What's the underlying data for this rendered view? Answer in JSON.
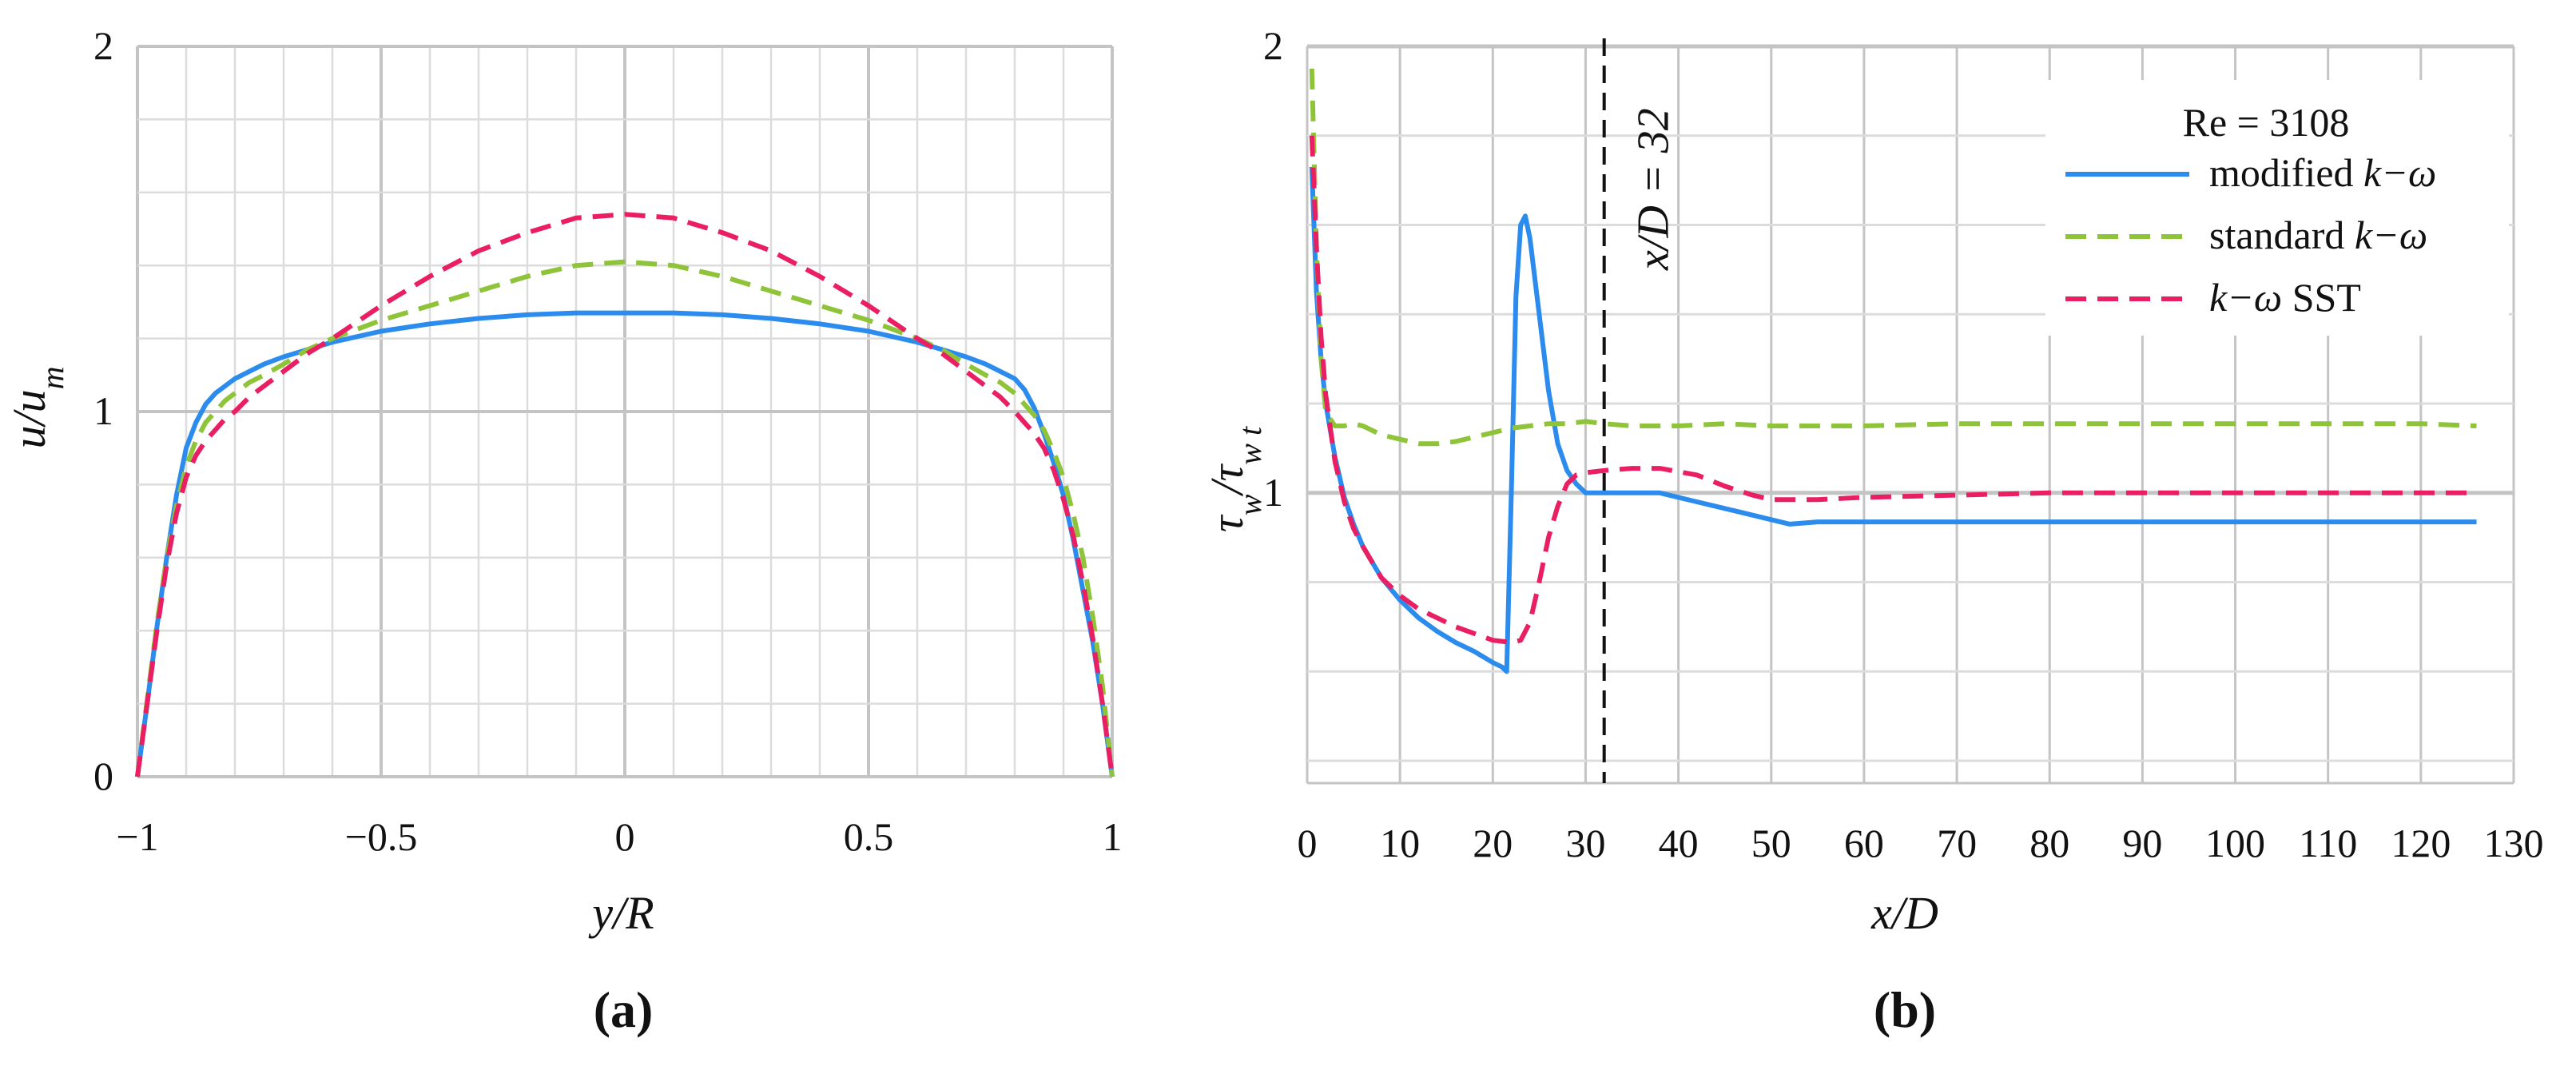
{
  "figure": {
    "panels": [
      {
        "label": "(a)"
      },
      {
        "label": "(b)"
      }
    ]
  },
  "colors": {
    "modified": "#2b8cee",
    "standard": "#8fc43a",
    "sst": "#e91e63",
    "grid_major": "#c4c4c4",
    "grid_minor": "#dcdcdc"
  },
  "chart_data": [
    {
      "type": "line",
      "panel": "(a)",
      "xlabel": "y/R",
      "ylabel": "u/u_m",
      "xlim": [
        -1,
        1
      ],
      "ylim": [
        0,
        2
      ],
      "xticks": [
        -1,
        -0.5,
        0,
        0.5,
        1
      ],
      "xtick_labels": [
        "−1",
        "−0.5",
        "0",
        "0.5",
        "1"
      ],
      "yticks": [
        0,
        1,
        2
      ],
      "ytick_labels": [
        "0",
        "1",
        "2"
      ],
      "grid": true,
      "series": [
        {
          "key": "modified",
          "style": "solid",
          "x": [
            -1,
            -0.98,
            -0.96,
            -0.94,
            -0.92,
            -0.9,
            -0.88,
            -0.86,
            -0.84,
            -0.82,
            -0.8,
            -0.77,
            -0.74,
            -0.7,
            -0.65,
            -0.6,
            -0.5,
            -0.4,
            -0.3,
            -0.2,
            -0.1,
            0,
            0.1,
            0.2,
            0.3,
            0.4,
            0.5,
            0.6,
            0.65,
            0.7,
            0.74,
            0.77,
            0.8,
            0.82,
            0.84,
            0.86,
            0.88,
            0.9,
            0.92,
            0.94,
            0.96,
            0.98,
            1
          ],
          "y": [
            0,
            0.2,
            0.41,
            0.6,
            0.77,
            0.9,
            0.97,
            1.02,
            1.05,
            1.07,
            1.09,
            1.11,
            1.13,
            1.15,
            1.17,
            1.19,
            1.22,
            1.24,
            1.255,
            1.265,
            1.27,
            1.27,
            1.27,
            1.265,
            1.255,
            1.24,
            1.22,
            1.19,
            1.17,
            1.15,
            1.13,
            1.11,
            1.09,
            1.06,
            1.01,
            0.94,
            0.86,
            0.77,
            0.65,
            0.51,
            0.37,
            0.2,
            0
          ]
        },
        {
          "key": "standard",
          "style": "dashed",
          "x": [
            -1,
            -0.98,
            -0.96,
            -0.94,
            -0.92,
            -0.9,
            -0.88,
            -0.86,
            -0.84,
            -0.82,
            -0.8,
            -0.77,
            -0.74,
            -0.7,
            -0.65,
            -0.6,
            -0.5,
            -0.4,
            -0.3,
            -0.2,
            -0.1,
            0,
            0.1,
            0.2,
            0.3,
            0.4,
            0.5,
            0.6,
            0.65,
            0.7,
            0.74,
            0.77,
            0.8,
            0.82,
            0.84,
            0.86,
            0.88,
            0.9,
            0.92,
            0.94,
            0.96,
            0.98,
            1
          ],
          "y": [
            0,
            0.21,
            0.42,
            0.6,
            0.74,
            0.85,
            0.92,
            0.97,
            1.0,
            1.03,
            1.05,
            1.08,
            1.1,
            1.13,
            1.17,
            1.2,
            1.25,
            1.29,
            1.33,
            1.37,
            1.4,
            1.41,
            1.4,
            1.37,
            1.33,
            1.29,
            1.25,
            1.2,
            1.17,
            1.13,
            1.1,
            1.08,
            1.05,
            1.02,
            0.99,
            0.95,
            0.89,
            0.82,
            0.72,
            0.6,
            0.44,
            0.25,
            0
          ]
        },
        {
          "key": "sst",
          "style": "dashed",
          "x": [
            -1,
            -0.98,
            -0.96,
            -0.94,
            -0.92,
            -0.9,
            -0.88,
            -0.86,
            -0.84,
            -0.82,
            -0.8,
            -0.77,
            -0.74,
            -0.7,
            -0.65,
            -0.6,
            -0.5,
            -0.4,
            -0.3,
            -0.2,
            -0.1,
            0,
            0.1,
            0.2,
            0.3,
            0.4,
            0.5,
            0.6,
            0.65,
            0.7,
            0.74,
            0.77,
            0.8,
            0.82,
            0.84,
            0.86,
            0.88,
            0.9,
            0.92,
            0.94,
            0.96,
            0.98,
            1
          ],
          "y": [
            0,
            0.2,
            0.4,
            0.58,
            0.72,
            0.82,
            0.88,
            0.92,
            0.95,
            0.98,
            1.0,
            1.04,
            1.07,
            1.11,
            1.16,
            1.2,
            1.29,
            1.37,
            1.44,
            1.49,
            1.53,
            1.54,
            1.53,
            1.49,
            1.44,
            1.37,
            1.29,
            1.2,
            1.16,
            1.11,
            1.07,
            1.04,
            1.0,
            0.97,
            0.94,
            0.9,
            0.84,
            0.76,
            0.66,
            0.53,
            0.38,
            0.2,
            0
          ]
        }
      ]
    },
    {
      "type": "line",
      "panel": "(b)",
      "xlabel": "x/D",
      "ylabel": "τ_w/τ_w t",
      "xlim": [
        0,
        130
      ],
      "ylim": [
        0.35,
        2
      ],
      "xticks": [
        0,
        10,
        20,
        30,
        40,
        50,
        60,
        70,
        80,
        90,
        100,
        110,
        120,
        130
      ],
      "yticks": [
        1,
        2
      ],
      "ytick_labels": [
        "1",
        "2"
      ],
      "grid": true,
      "legend": {
        "title": "Re = 3108",
        "placement": "top-right",
        "entries": [
          {
            "key": "modified",
            "text": "modified ",
            "italic": "k−ω"
          },
          {
            "key": "standard",
            "text": "standard ",
            "italic": "k−ω"
          },
          {
            "key": "sst",
            "italic": "k−ω",
            "text": " SST"
          }
        ]
      },
      "annotation": {
        "x": 32,
        "text": "x/D = 32"
      },
      "series": [
        {
          "key": "modified",
          "style": "solid",
          "x": [
            0.5,
            1,
            1.5,
            2,
            3,
            4,
            5,
            6,
            8,
            10,
            12,
            14,
            16,
            18,
            20,
            21,
            21.5,
            22,
            22.5,
            23,
            23.5,
            24,
            25,
            26,
            27,
            28,
            29,
            30,
            32,
            35,
            38,
            42,
            46,
            50,
            52,
            55,
            60,
            70,
            80,
            90,
            100,
            110,
            120,
            126
          ],
          "y": [
            1.73,
            1.45,
            1.3,
            1.2,
            1.08,
            0.99,
            0.93,
            0.88,
            0.81,
            0.76,
            0.72,
            0.69,
            0.665,
            0.645,
            0.62,
            0.61,
            0.6,
            1.0,
            1.44,
            1.6,
            1.62,
            1.57,
            1.4,
            1.23,
            1.11,
            1.05,
            1.02,
            1.0,
            1.0,
            1.0,
            1.0,
            0.98,
            0.96,
            0.94,
            0.93,
            0.935,
            0.935,
            0.935,
            0.935,
            0.935,
            0.935,
            0.935,
            0.935,
            0.935
          ]
        },
        {
          "key": "standard",
          "style": "dashed",
          "x": [
            0.5,
            1,
            1.5,
            2,
            3,
            4,
            5,
            6,
            8,
            10,
            12,
            14,
            16,
            18,
            20,
            22,
            24,
            26,
            28,
            30,
            32,
            35,
            40,
            45,
            50,
            60,
            70,
            80,
            90,
            100,
            110,
            120,
            126
          ],
          "y": [
            1.95,
            1.55,
            1.3,
            1.18,
            1.15,
            1.15,
            1.155,
            1.15,
            1.13,
            1.12,
            1.11,
            1.11,
            1.115,
            1.125,
            1.135,
            1.145,
            1.15,
            1.155,
            1.155,
            1.16,
            1.155,
            1.15,
            1.15,
            1.155,
            1.15,
            1.15,
            1.155,
            1.155,
            1.155,
            1.155,
            1.155,
            1.155,
            1.15
          ]
        },
        {
          "key": "sst",
          "style": "dashed",
          "x": [
            0.5,
            1,
            1.5,
            2,
            3,
            4,
            5,
            6,
            8,
            10,
            12,
            14,
            16,
            18,
            20,
            22,
            23,
            24,
            25,
            26,
            27,
            28,
            29,
            30,
            32,
            35,
            38,
            42,
            45,
            48,
            50,
            55,
            60,
            70,
            80,
            90,
            100,
            110,
            120,
            126
          ],
          "y": [
            1.8,
            1.55,
            1.35,
            1.22,
            1.07,
            0.98,
            0.92,
            0.88,
            0.81,
            0.77,
            0.74,
            0.72,
            0.7,
            0.685,
            0.67,
            0.665,
            0.67,
            0.71,
            0.8,
            0.9,
            0.97,
            1.02,
            1.04,
            1.045,
            1.05,
            1.055,
            1.055,
            1.04,
            1.015,
            0.995,
            0.985,
            0.985,
            0.99,
            0.995,
            1.0,
            1.0,
            1.0,
            1.0,
            1.0,
            1.0
          ]
        }
      ]
    }
  ]
}
